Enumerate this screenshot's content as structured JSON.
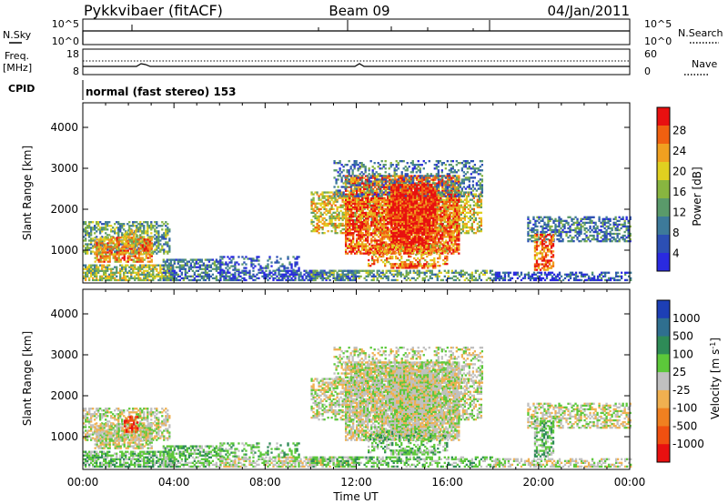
{
  "header": {
    "station": "Pykkvibaer (fitACF)",
    "beam": "Beam 09",
    "date": "04/Jan/2011"
  },
  "aux_panels": {
    "nsky_label": "N.Sky",
    "nsky_ticks": [
      "10^5",
      "10^0"
    ],
    "nsearch_label": "N.Search",
    "nsearch_ticks": [
      "10^5",
      "10^0"
    ],
    "freq_label_line1": "Freq.",
    "freq_label_line2": "[MHz]",
    "freq_ticks": [
      "18",
      "8"
    ],
    "nave_label": "Nave",
    "nave_ticks": [
      "60",
      "0"
    ],
    "cpid_label": "CPID",
    "cpid_text": "normal (fast stereo) 153"
  },
  "colors": {
    "power_scale": [
      "#2a2ae0",
      "#2c4fb4",
      "#3d7a9a",
      "#5a9a6a",
      "#88b540",
      "#e0d020",
      "#f0a020",
      "#f06010",
      "#e81010"
    ],
    "velocity_scale": [
      "#1d3fb5",
      "#2f6f8f",
      "#2e8b57",
      "#5cc83a",
      "#c0c0c0",
      "#f0b050",
      "#f08020",
      "#f05010",
      "#e81010"
    ]
  },
  "chart_data": [
    {
      "type": "heatmap",
      "name": "power",
      "xlabel": "Time UT",
      "ylabel": "Slant Range [km]",
      "x_ticks": [
        "00:00",
        "04:00",
        "08:00",
        "12:00",
        "16:00",
        "20:00",
        "00:00"
      ],
      "xlim": [
        0,
        24
      ],
      "ylim": [
        200,
        4600
      ],
      "y_ticks": [
        1000,
        2000,
        3000,
        4000
      ],
      "colorbar": {
        "label": "Power [dB]",
        "ticks": [
          "4",
          "8",
          "12",
          "16",
          "20",
          "24",
          "28"
        ],
        "range": [
          0,
          30
        ]
      }
    },
    {
      "type": "heatmap",
      "name": "velocity",
      "xlabel": "Time UT",
      "ylabel": "Slant Range [km]",
      "x_ticks": [
        "00:00",
        "04:00",
        "08:00",
        "12:00",
        "16:00",
        "20:00",
        "00:00"
      ],
      "xlim": [
        0,
        24
      ],
      "ylim": [
        200,
        4600
      ],
      "y_ticks": [
        1000,
        2000,
        3000,
        4000
      ],
      "colorbar": {
        "label": "Velocity [m s^-1]",
        "ticks": [
          "1000",
          "500",
          "100",
          "25",
          "-25",
          "-100",
          "-500",
          "-1000"
        ]
      }
    }
  ]
}
